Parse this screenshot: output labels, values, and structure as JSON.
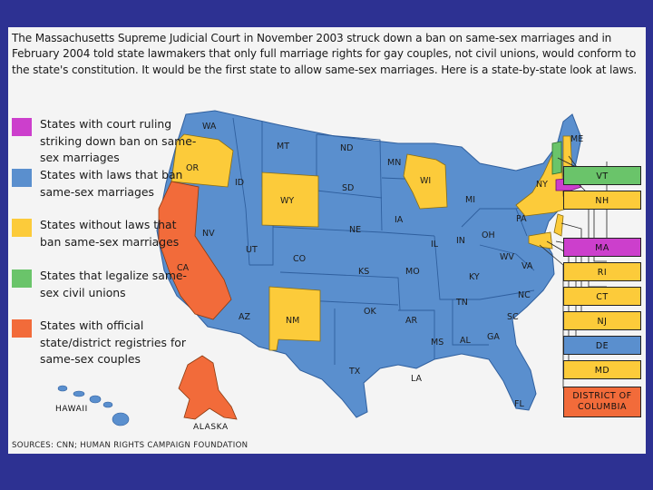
{
  "intro": "The Massachusetts Supreme Judicial Court in November 2003 struck down a ban on same-sex marriages and in February 2004 told state lawmakers that only full marriage rights for gay couples, not civil unions, would conform to the state's constitution. It would be the first state to allow same-sex marriages. Here is a state-by-state look at laws.",
  "colors": {
    "court_ruling": "#cc3fcc",
    "ban_law": "#5a8fce",
    "no_ban_law": "#fccb3a",
    "civil_unions": "#6ac46a",
    "registries": "#f26b3a"
  },
  "legend": [
    {
      "label": "States with court ruling striking down ban on same-sex marriages",
      "color": "#cc3fcc"
    },
    {
      "label": "States with laws that ban same-sex marriages",
      "color": "#5a8fce"
    },
    {
      "label": "States without laws that ban same-sex marriages",
      "color": "#fccb3a"
    },
    {
      "label": "States that legalize same-sex civil unions",
      "color": "#6ac46a"
    },
    {
      "label": "States with official state/district registries for same-sex couples",
      "color": "#f26b3a"
    }
  ],
  "states": {
    "WA": "WA",
    "OR": "OR",
    "CA": "CA",
    "ID": "ID",
    "NV": "NV",
    "MT": "MT",
    "WY": "WY",
    "UT": "UT",
    "AZ": "AZ",
    "CO": "CO",
    "NM": "NM",
    "ND": "ND",
    "SD": "SD",
    "NE": "NE",
    "KS": "KS",
    "OK": "OK",
    "TX": "TX",
    "MN": "MN",
    "IA": "IA",
    "MO": "MO",
    "AR": "AR",
    "LA": "LA",
    "WI": "WI",
    "IL": "IL",
    "MI": "MI",
    "IN": "IN",
    "OH": "OH",
    "KY": "KY",
    "TN": "TN",
    "MS": "MS",
    "AL": "AL",
    "GA": "GA",
    "FL": "FL",
    "SC": "SC",
    "NC": "NC",
    "VA": "VA",
    "WV": "WV",
    "PA": "PA",
    "NY": "NY",
    "ME": "ME"
  },
  "callouts": [
    "VT",
    "NH",
    "MA",
    "RI",
    "CT",
    "NJ",
    "DE",
    "MD",
    "DISTRICT OF COLUMBIA"
  ],
  "hawaii": "HAWAII",
  "alaska": "ALASKA",
  "sources": "SOURCES: CNN; HUMAN RIGHTS CAMPAIGN FOUNDATION"
}
